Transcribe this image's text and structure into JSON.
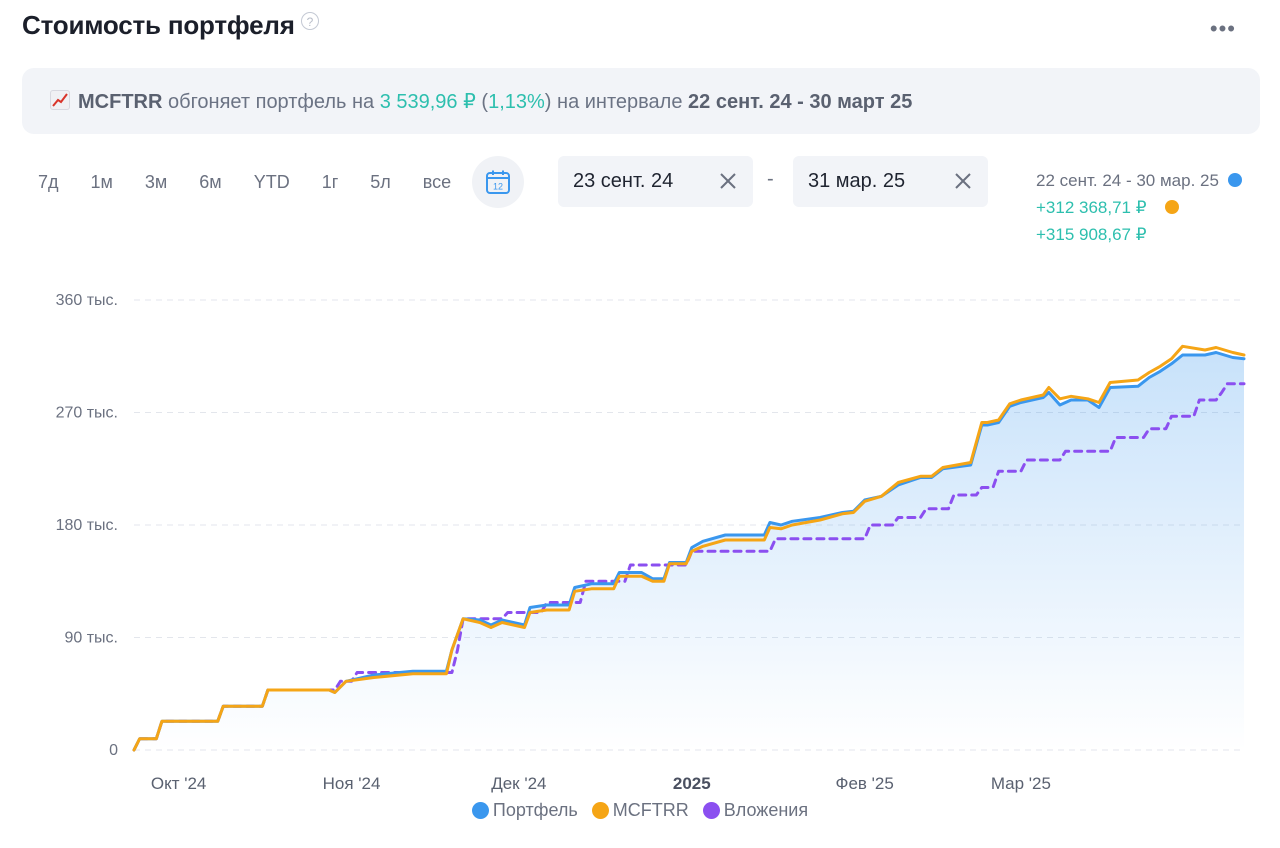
{
  "header": {
    "title": "Стоимость портфеля",
    "help": "?",
    "more": "•••"
  },
  "banner": {
    "ticker": "MCFTRR",
    "text1": "обгоняет портфель на",
    "amount": "3 539,96 ₽",
    "open": "(",
    "percent": "1,13%",
    "close": ")",
    "text2": "на интервале",
    "interval": "22 сент. 24 - 30 март 25"
  },
  "periods": [
    "7д",
    "1м",
    "3м",
    "6м",
    "YTD",
    "1г",
    "5л",
    "все"
  ],
  "calendar": {
    "day": "12"
  },
  "date_from": {
    "value": "23 сент. 24"
  },
  "date_to": {
    "value": "31 мар. 25"
  },
  "range_separator": "-",
  "range_info": {
    "period": "22 сент. 24 - 30 мар. 25",
    "portfolio_change": "+312 368,71 ₽",
    "mcftrr_change": "+315 908,67 ₽"
  },
  "colors": {
    "portfolio": "#3a97ee",
    "mcftrr": "#f5a516",
    "investments": "#8b4ff0",
    "accent": "#2dbfae"
  },
  "legend": [
    {
      "name": "Портфель",
      "color": "#3a97ee"
    },
    {
      "name": "MCFTRR",
      "color": "#f5a516"
    },
    {
      "name": "Вложения",
      "color": "#8b4ff0"
    }
  ],
  "chart_data": {
    "type": "line",
    "x_start": "2024-09-23",
    "x_end": "2025-03-31",
    "yticks": [
      {
        "value": 0,
        "label": "0"
      },
      {
        "value": 90000,
        "label": "90 тыс."
      },
      {
        "value": 180000,
        "label": "180 тыс."
      },
      {
        "value": 270000,
        "label": "270 тыс."
      },
      {
        "value": 360000,
        "label": "360 тыс."
      }
    ],
    "xticks": [
      {
        "date": "2024-10-01",
        "label": "Окт '24",
        "bold": false
      },
      {
        "date": "2024-11-01",
        "label": "Ноя '24",
        "bold": false
      },
      {
        "date": "2024-12-01",
        "label": "Дек '24",
        "bold": false
      },
      {
        "date": "2025-01-01",
        "label": "2025",
        "bold": true
      },
      {
        "date": "2025-02-01",
        "label": "Фев '25",
        "bold": false
      },
      {
        "date": "2025-03-01",
        "label": "Мар '25",
        "bold": false
      }
    ],
    "ylim": [
      0,
      360000
    ],
    "grid": true,
    "legend_position": "bottom",
    "series": [
      {
        "name": "Портфель",
        "style": "solid",
        "points": [
          [
            "2024-09-23",
            0
          ],
          [
            "2024-09-24",
            9000
          ],
          [
            "2024-09-27",
            9000
          ],
          [
            "2024-09-28",
            23000
          ],
          [
            "2024-10-08",
            23000
          ],
          [
            "2024-10-09",
            35000
          ],
          [
            "2024-10-16",
            35000
          ],
          [
            "2024-10-17",
            48000
          ],
          [
            "2024-10-28",
            48000
          ],
          [
            "2024-10-29",
            46000
          ],
          [
            "2024-10-31",
            55000
          ],
          [
            "2024-11-05",
            60000
          ],
          [
            "2024-11-12",
            63000
          ],
          [
            "2024-11-18",
            63000
          ],
          [
            "2024-11-19",
            80000
          ],
          [
            "2024-11-21",
            105000
          ],
          [
            "2024-11-24",
            104000
          ],
          [
            "2024-11-26",
            100000
          ],
          [
            "2024-11-28",
            104000
          ],
          [
            "2024-12-02",
            100000
          ],
          [
            "2024-12-03",
            114000
          ],
          [
            "2024-12-06",
            116000
          ],
          [
            "2024-12-10",
            116000
          ],
          [
            "2024-12-11",
            130000
          ],
          [
            "2024-12-14",
            133000
          ],
          [
            "2024-12-18",
            133000
          ],
          [
            "2024-12-19",
            142000
          ],
          [
            "2024-12-23",
            142000
          ],
          [
            "2024-12-25",
            137000
          ],
          [
            "2024-12-27",
            137000
          ],
          [
            "2024-12-28",
            150000
          ],
          [
            "2024-12-31",
            150000
          ],
          [
            "2025-01-01",
            162000
          ],
          [
            "2025-01-03",
            167000
          ],
          [
            "2025-01-07",
            172000
          ],
          [
            "2025-01-14",
            172000
          ],
          [
            "2025-01-15",
            182000
          ],
          [
            "2025-01-17",
            180000
          ],
          [
            "2025-01-19",
            183000
          ],
          [
            "2025-01-24",
            186000
          ],
          [
            "2025-01-28",
            190000
          ],
          [
            "2025-01-30",
            191000
          ],
          [
            "2025-02-01",
            200000
          ],
          [
            "2025-02-04",
            203000
          ],
          [
            "2025-02-07",
            212000
          ],
          [
            "2025-02-11",
            218000
          ],
          [
            "2025-02-13",
            218000
          ],
          [
            "2025-02-15",
            225000
          ],
          [
            "2025-02-20",
            228000
          ],
          [
            "2025-02-22",
            260000
          ],
          [
            "2025-02-23",
            260000
          ],
          [
            "2025-02-25",
            262000
          ],
          [
            "2025-02-27",
            275000
          ],
          [
            "2025-03-01",
            278000
          ],
          [
            "2025-03-05",
            282000
          ],
          [
            "2025-03-06",
            286000
          ],
          [
            "2025-03-08",
            276000
          ],
          [
            "2025-03-10",
            280000
          ],
          [
            "2025-03-13",
            280000
          ],
          [
            "2025-03-15",
            274000
          ],
          [
            "2025-03-17",
            290000
          ],
          [
            "2025-03-22",
            291000
          ],
          [
            "2025-03-24",
            298000
          ],
          [
            "2025-03-26",
            303000
          ],
          [
            "2025-03-28",
            309000
          ],
          [
            "2025-03-30",
            316000
          ],
          [
            "2025-04-03",
            316000
          ],
          [
            "2025-04-05",
            318000
          ],
          [
            "2025-04-08",
            314000
          ],
          [
            "2025-04-10",
            313000
          ]
        ]
      },
      {
        "name": "MCFTRR",
        "style": "solid",
        "points": [
          [
            "2024-09-23",
            0
          ],
          [
            "2024-09-24",
            9000
          ],
          [
            "2024-09-27",
            9000
          ],
          [
            "2024-09-28",
            23000
          ],
          [
            "2024-10-08",
            23000
          ],
          [
            "2024-10-09",
            35000
          ],
          [
            "2024-10-16",
            35000
          ],
          [
            "2024-10-17",
            48000
          ],
          [
            "2024-10-28",
            48000
          ],
          [
            "2024-10-29",
            46000
          ],
          [
            "2024-10-31",
            55000
          ],
          [
            "2024-11-05",
            58000
          ],
          [
            "2024-11-12",
            61000
          ],
          [
            "2024-11-18",
            61000
          ],
          [
            "2024-11-19",
            80000
          ],
          [
            "2024-11-21",
            105000
          ],
          [
            "2024-11-24",
            102000
          ],
          [
            "2024-11-26",
            98000
          ],
          [
            "2024-11-28",
            102000
          ],
          [
            "2024-12-02",
            98000
          ],
          [
            "2024-12-03",
            110000
          ],
          [
            "2024-12-06",
            112000
          ],
          [
            "2024-12-10",
            112000
          ],
          [
            "2024-12-11",
            127000
          ],
          [
            "2024-12-14",
            129000
          ],
          [
            "2024-12-18",
            129000
          ],
          [
            "2024-12-19",
            139000
          ],
          [
            "2024-12-23",
            139000
          ],
          [
            "2024-12-25",
            135000
          ],
          [
            "2024-12-27",
            135000
          ],
          [
            "2024-12-28",
            149000
          ],
          [
            "2024-12-31",
            149000
          ],
          [
            "2025-01-01",
            159000
          ],
          [
            "2025-01-03",
            163000
          ],
          [
            "2025-01-07",
            168000
          ],
          [
            "2025-01-14",
            168000
          ],
          [
            "2025-01-15",
            178000
          ],
          [
            "2025-01-17",
            177000
          ],
          [
            "2025-01-19",
            180000
          ],
          [
            "2025-01-24",
            184000
          ],
          [
            "2025-01-28",
            189000
          ],
          [
            "2025-01-30",
            190000
          ],
          [
            "2025-02-01",
            199000
          ],
          [
            "2025-02-04",
            203000
          ],
          [
            "2025-02-07",
            214000
          ],
          [
            "2025-02-11",
            219000
          ],
          [
            "2025-02-13",
            219000
          ],
          [
            "2025-02-15",
            226000
          ],
          [
            "2025-02-20",
            230000
          ],
          [
            "2025-02-22",
            262000
          ],
          [
            "2025-02-23",
            262000
          ],
          [
            "2025-02-25",
            264000
          ],
          [
            "2025-02-27",
            277000
          ],
          [
            "2025-03-01",
            280000
          ],
          [
            "2025-03-05",
            284000
          ],
          [
            "2025-03-06",
            290000
          ],
          [
            "2025-03-08",
            281000
          ],
          [
            "2025-03-10",
            283000
          ],
          [
            "2025-03-13",
            281000
          ],
          [
            "2025-03-15",
            278000
          ],
          [
            "2025-03-17",
            294000
          ],
          [
            "2025-03-22",
            296000
          ],
          [
            "2025-03-24",
            302000
          ],
          [
            "2025-03-26",
            307000
          ],
          [
            "2025-03-28",
            313000
          ],
          [
            "2025-03-30",
            323000
          ],
          [
            "2025-04-03",
            320000
          ],
          [
            "2025-04-05",
            322000
          ],
          [
            "2025-04-08",
            318000
          ],
          [
            "2025-04-10",
            316000
          ]
        ]
      },
      {
        "name": "Вложения",
        "style": "dashed",
        "points": [
          [
            "2024-09-23",
            0
          ],
          [
            "2024-09-24",
            9000
          ],
          [
            "2024-09-27",
            9000
          ],
          [
            "2024-09-28",
            23000
          ],
          [
            "2024-10-08",
            23000
          ],
          [
            "2024-10-09",
            35000
          ],
          [
            "2024-10-16",
            35000
          ],
          [
            "2024-10-17",
            48000
          ],
          [
            "2024-10-29",
            48000
          ],
          [
            "2024-10-30",
            55000
          ],
          [
            "2024-11-01",
            55000
          ],
          [
            "2024-11-02",
            62000
          ],
          [
            "2024-11-19",
            62000
          ],
          [
            "2024-11-20",
            80000
          ],
          [
            "2024-11-21",
            105000
          ],
          [
            "2024-11-28",
            105000
          ],
          [
            "2024-11-29",
            110000
          ],
          [
            "2024-12-05",
            110000
          ],
          [
            "2024-12-06",
            118000
          ],
          [
            "2024-12-12",
            118000
          ],
          [
            "2024-12-13",
            135000
          ],
          [
            "2024-12-20",
            135000
          ],
          [
            "2024-12-21",
            148000
          ],
          [
            "2024-12-31",
            148000
          ],
          [
            "2025-01-01",
            159000
          ],
          [
            "2025-01-15",
            159000
          ],
          [
            "2025-01-16",
            169000
          ],
          [
            "2025-02-01",
            169000
          ],
          [
            "2025-02-02",
            180000
          ],
          [
            "2025-02-06",
            180000
          ],
          [
            "2025-02-07",
            186000
          ],
          [
            "2025-02-11",
            186000
          ],
          [
            "2025-02-12",
            193000
          ],
          [
            "2025-02-16",
            193000
          ],
          [
            "2025-02-17",
            204000
          ],
          [
            "2025-02-21",
            204000
          ],
          [
            "2025-02-22",
            210000
          ],
          [
            "2025-02-24",
            210000
          ],
          [
            "2025-02-25",
            223000
          ],
          [
            "2025-03-01",
            223000
          ],
          [
            "2025-03-02",
            232000
          ],
          [
            "2025-03-08",
            232000
          ],
          [
            "2025-03-09",
            239000
          ],
          [
            "2025-03-17",
            239000
          ],
          [
            "2025-03-18",
            250000
          ],
          [
            "2025-03-23",
            250000
          ],
          [
            "2025-03-24",
            257000
          ],
          [
            "2025-03-27",
            257000
          ],
          [
            "2025-03-28",
            267000
          ],
          [
            "2025-04-01",
            267000
          ],
          [
            "2025-04-02",
            280000
          ],
          [
            "2025-04-05",
            280000
          ],
          [
            "2025-04-06",
            286000
          ],
          [
            "2025-04-07",
            293000
          ],
          [
            "2025-04-10",
            293000
          ]
        ]
      }
    ]
  }
}
